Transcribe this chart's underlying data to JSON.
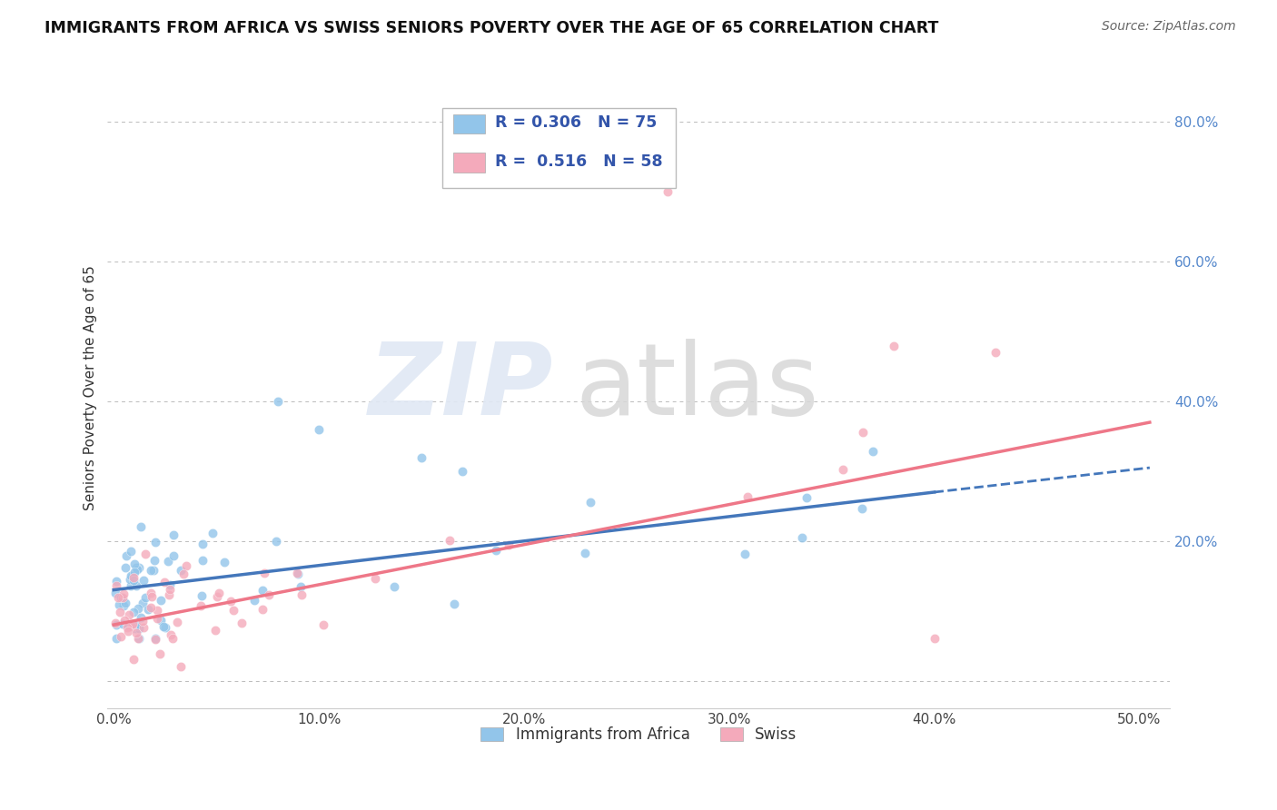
{
  "title": "IMMIGRANTS FROM AFRICA VS SWISS SENIORS POVERTY OVER THE AGE OF 65 CORRELATION CHART",
  "source": "Source: ZipAtlas.com",
  "ylabel": "Seniors Poverty Over the Age of 65",
  "series1_color": "#92C5EA",
  "series2_color": "#F4AABB",
  "series1_line_color": "#4477BB",
  "series2_line_color": "#EE7788",
  "series1_label": "Immigrants from Africa",
  "series2_label": "Swiss",
  "R1": "0.306",
  "N1": "75",
  "R2": "0.516",
  "N2": "58",
  "legend_text_color": "#3355AA",
  "background_color": "#ffffff",
  "grid_color": "#bbbbbb",
  "xlim": [
    -0.003,
    0.515
  ],
  "ylim": [
    -0.04,
    0.88
  ],
  "line1_x0": 0.0,
  "line1_y0": 0.13,
  "line1_x1": 0.4,
  "line1_y1": 0.27,
  "line1_dash_x1": 0.505,
  "line1_dash_y1": 0.305,
  "line2_x0": 0.0,
  "line2_y0": 0.08,
  "line2_x1": 0.505,
  "line2_y1": 0.37
}
